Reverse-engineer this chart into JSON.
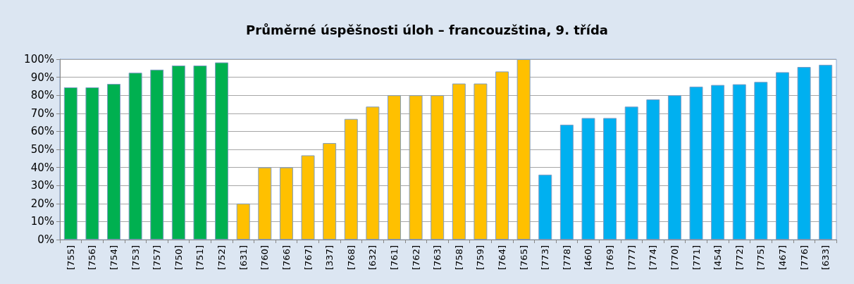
{
  "chart_data": {
    "type": "bar",
    "title": "Průměrné úspěšnosti úloh – francouzština, 9. třída",
    "categories": [
      "[755]",
      "[756]",
      "[754]",
      "[753]",
      "[757]",
      "[750]",
      "[751]",
      "[752]",
      "[631]",
      "[760]",
      "[766]",
      "[767]",
      "[337]",
      "[768]",
      "[632]",
      "[761]",
      "[762]",
      "[763]",
      "[758]",
      "[759]",
      "[764]",
      "[765]",
      "[773]",
      "[778]",
      "[460]",
      "[769]",
      "[777]",
      "[774]",
      "[770]",
      "[771]",
      "[454]",
      "[772]",
      "[775]",
      "[467]",
      "[776]",
      "[633]"
    ],
    "values": [
      84.4,
      84.4,
      86.3,
      92.5,
      94.2,
      96.5,
      96.5,
      98.2,
      20,
      40,
      40,
      46.7,
      53.5,
      66.9,
      73.7,
      80,
      80,
      80,
      86.5,
      86.5,
      93.2,
      100,
      36,
      63.7,
      67.4,
      67.4,
      73.7,
      77.7,
      80,
      84.8,
      85.7,
      86.1,
      87.4,
      92.8,
      95.7,
      96.9
    ],
    "colors": [
      "#00b050",
      "#00b050",
      "#00b050",
      "#00b050",
      "#00b050",
      "#00b050",
      "#00b050",
      "#00b050",
      "#ffc000",
      "#ffc000",
      "#ffc000",
      "#ffc000",
      "#ffc000",
      "#ffc000",
      "#ffc000",
      "#ffc000",
      "#ffc000",
      "#ffc000",
      "#ffc000",
      "#ffc000",
      "#ffc000",
      "#ffc000",
      "#00b0f0",
      "#00b0f0",
      "#00b0f0",
      "#00b0f0",
      "#00b0f0",
      "#00b0f0",
      "#00b0f0",
      "#00b0f0",
      "#00b0f0",
      "#00b0f0",
      "#00b0f0",
      "#00b0f0",
      "#00b0f0",
      "#00b0f0"
    ],
    "ylim": [
      0,
      100
    ],
    "yticks": [
      {
        "value": 0,
        "label": "0%"
      },
      {
        "value": 10,
        "label": "10%"
      },
      {
        "value": 20,
        "label": "20%"
      },
      {
        "value": 30,
        "label": "30%"
      },
      {
        "value": 40,
        "label": "40%"
      },
      {
        "value": 50,
        "label": "50%"
      },
      {
        "value": 60,
        "label": "60%"
      },
      {
        "value": 70,
        "label": "70%"
      },
      {
        "value": 80,
        "label": "80%"
      },
      {
        "value": 90,
        "label": "90%"
      },
      {
        "value": 100,
        "label": "100%"
      }
    ],
    "grid": "y"
  }
}
